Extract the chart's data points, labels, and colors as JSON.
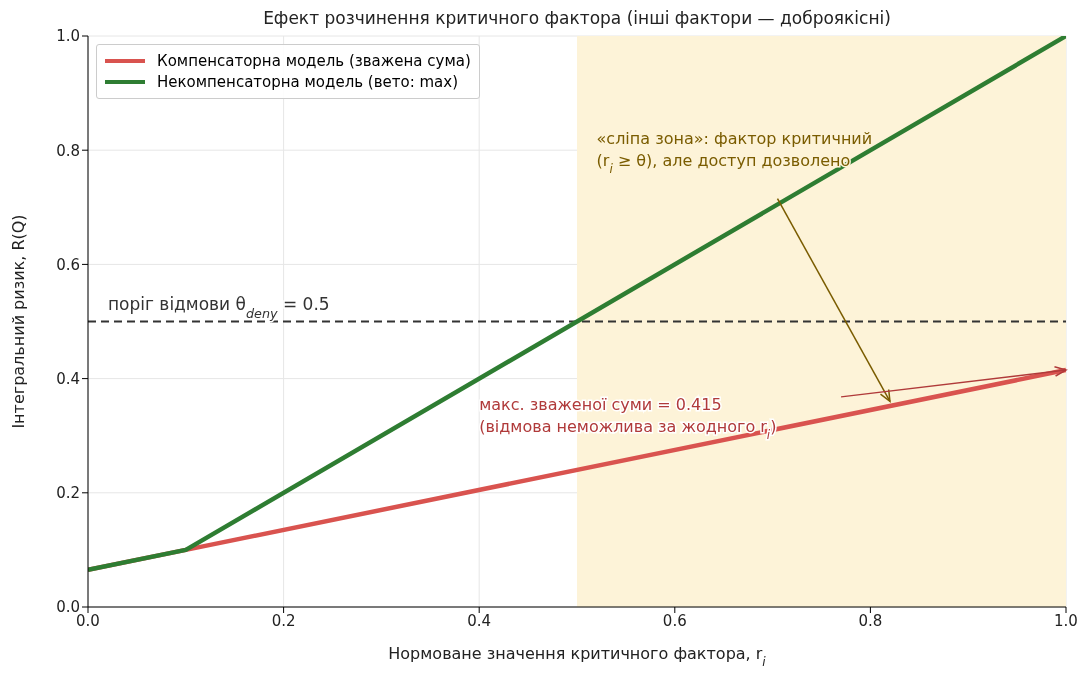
{
  "chart_data": {
    "type": "line",
    "title": "Ефект розчинення критичного фактора (інші фактори — доброякісні)",
    "xlabel": "Нормоване значення критичного фактора, r$_{i}$",
    "ylabel": "Інтегральний ризик, R(Q)",
    "x": [
      0,
      0.1,
      1.0
    ],
    "series": [
      {
        "name": "Компенсаторна модель (зважена сума)",
        "color": "#d9534f",
        "values": [
          0.065,
          0.1,
          0.415
        ]
      },
      {
        "name": "Некомпенсаторна модель (вето: max)",
        "color": "#2e7d32",
        "values": [
          0.065,
          0.1,
          1.0
        ]
      }
    ],
    "xlim": [
      0,
      1
    ],
    "ylim": [
      0,
      1
    ],
    "xticks": [
      {
        "value": 0,
        "label": "0.0"
      },
      0.2,
      0.4,
      0.6,
      0.8,
      {
        "value": 1,
        "label": "1.0"
      }
    ],
    "yticks": [
      {
        "value": 0,
        "label": "0.0"
      },
      0.2,
      0.4,
      0.6,
      0.8,
      {
        "value": 1,
        "label": "1.0"
      }
    ],
    "ref_lines": [
      {
        "axis": "y",
        "value": 0.5,
        "label": "поріг відмови  θ$_{deny}$ = 0.5",
        "color": "#333333",
        "line_style": "dashed"
      }
    ],
    "bands": [
      {
        "axis": "x",
        "from": 0.5,
        "to": 1.0,
        "color": "#fdf3d8"
      }
    ],
    "annotations": [
      "«сліпа зона»: фактор критичний\n(r$_{i}$ ≥ θ), але доступ дозволено",
      "макс. зваженої суми = 0.415\n(відмова неможлива за жодного r$_{i}$)"
    ],
    "grid": true,
    "legend": "top left",
    "line_style": "solid",
    "marker": "none"
  }
}
